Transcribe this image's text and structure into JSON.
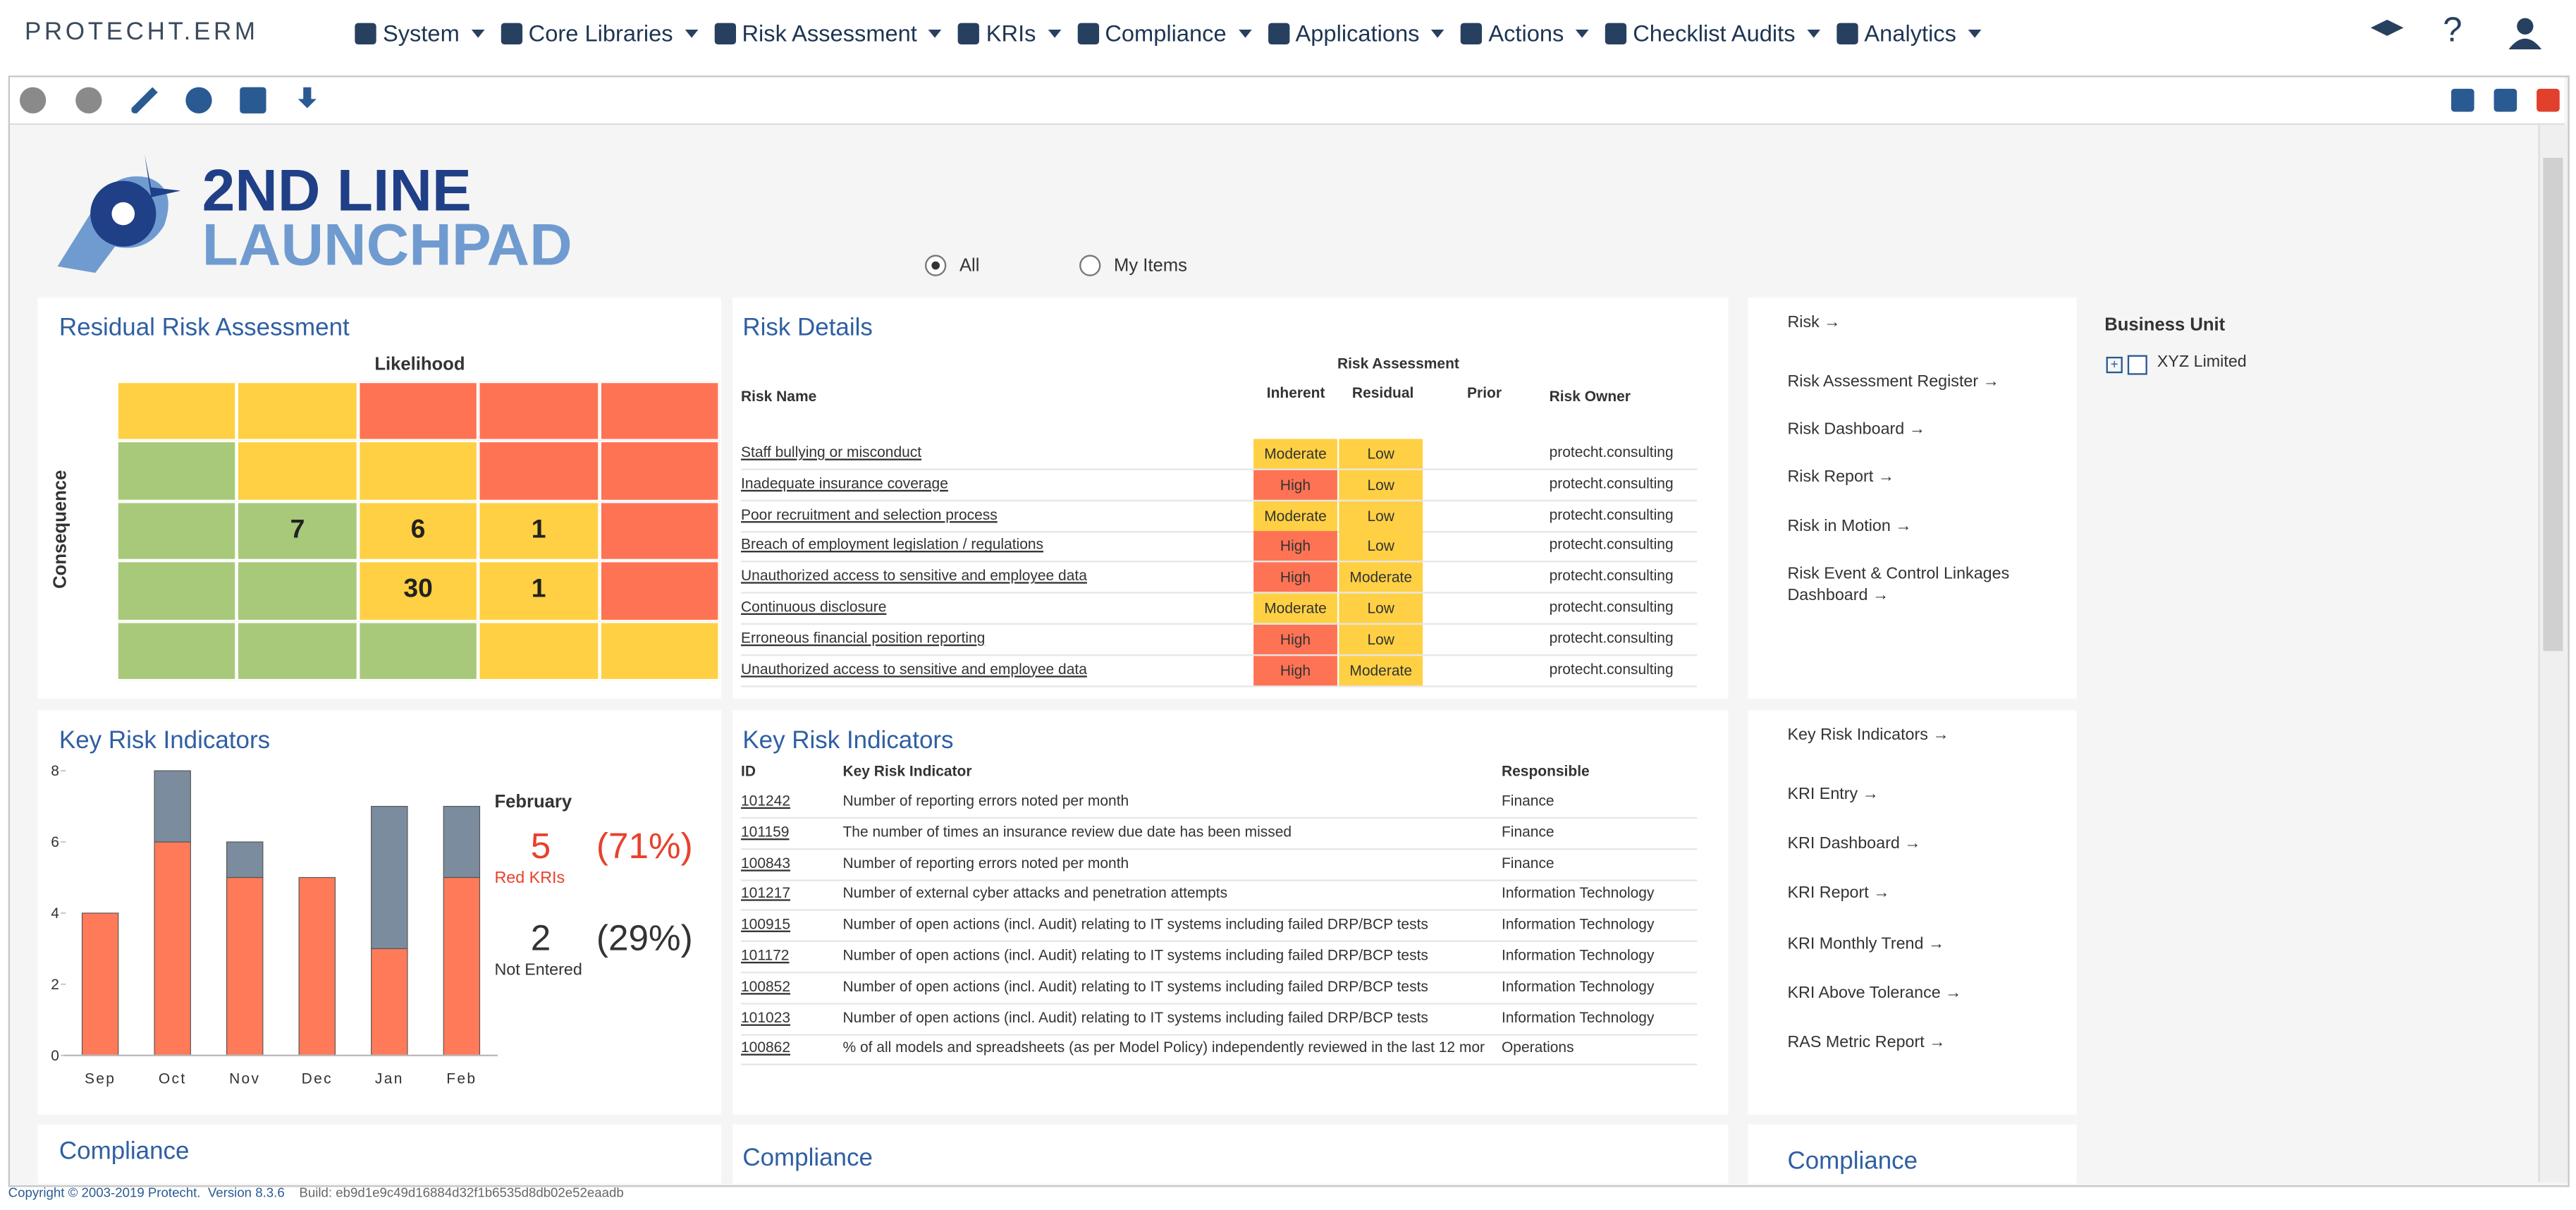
{
  "nav": {
    "brand": "PROTECHT.ERM",
    "menu": [
      "System",
      "Core Libraries",
      "Risk Assessment",
      "KRIs",
      "Compliance",
      "Applications",
      "Actions",
      "Checklist Audits",
      "Analytics"
    ],
    "help": "?"
  },
  "launchpad": {
    "title_line1": "2ND LINE",
    "title_line2": "LAUNCHPAD",
    "filters": [
      "All",
      "My Items"
    ]
  },
  "heatmap": {
    "title": "Residual Risk Assessment",
    "x_label": "Likelihood",
    "y_label": "Consequence",
    "colors": [
      [
        "#ffd043",
        "#ffd043",
        "#ff7355",
        "#ff7355",
        "#ff7355"
      ],
      [
        "#a8c97a",
        "#ffd043",
        "#ffd043",
        "#ff7355",
        "#ff7355"
      ],
      [
        "#a8c97a",
        "#a8c97a",
        "#ffd043",
        "#ffd043",
        "#ff7355"
      ],
      [
        "#a8c97a",
        "#a8c97a",
        "#ffd043",
        "#ffd043",
        "#ff7355"
      ],
      [
        "#a8c97a",
        "#a8c97a",
        "#a8c97a",
        "#ffd043",
        "#ffd043"
      ]
    ],
    "counts": [
      [
        null,
        null,
        null,
        null,
        null
      ],
      [
        null,
        null,
        null,
        null,
        null
      ],
      [
        null,
        7,
        6,
        1,
        null
      ],
      [
        null,
        null,
        30,
        1,
        null
      ],
      [
        null,
        null,
        null,
        null,
        null
      ]
    ]
  },
  "risk_details": {
    "title": "Risk Details",
    "group_header": "Risk Assessment",
    "columns": [
      "Risk Name",
      "Inherent",
      "Residual",
      "Prior",
      "Risk Owner"
    ],
    "rating_colors": {
      "High": "#ff7355",
      "Moderate": "#ffd043",
      "Low": "#ffd043"
    },
    "rows": [
      {
        "name": "Staff bullying or misconduct",
        "inherent": "Moderate",
        "residual": "Low",
        "owner": "protecht.consulting"
      },
      {
        "name": "Inadequate insurance coverage",
        "inherent": "High",
        "residual": "Low",
        "owner": "protecht.consulting"
      },
      {
        "name": "Poor recruitment and selection process",
        "inherent": "Moderate",
        "residual": "Low",
        "owner": "protecht.consulting"
      },
      {
        "name": "Breach of employment legislation / regulations",
        "inherent": "High",
        "residual": "Low",
        "owner": "protecht.consulting"
      },
      {
        "name": "Unauthorized access to sensitive and employee data",
        "inherent": "High",
        "residual": "Moderate",
        "owner": "protecht.consulting"
      },
      {
        "name": "Continuous disclosure",
        "inherent": "Moderate",
        "residual": "Low",
        "owner": "protecht.consulting"
      },
      {
        "name": "Erroneous financial position reporting",
        "inherent": "High",
        "residual": "Low",
        "owner": "protecht.consulting"
      },
      {
        "name": "Unauthorized access to sensitive and employee data",
        "inherent": "High",
        "residual": "Moderate",
        "owner": "protecht.consulting"
      }
    ]
  },
  "risk_links": {
    "title": "Risk",
    "links": [
      "Risk Assessment Register",
      "Risk Dashboard",
      "Risk Report",
      "Risk in Motion",
      "Risk Event & Control Linkages Dashboard"
    ]
  },
  "business_unit": {
    "title": "Business Unit",
    "items": [
      "XYZ Limited"
    ]
  },
  "chart_data": {
    "type": "bar",
    "stacked": true,
    "title": "Key Risk Indicators",
    "categories": [
      "Sep",
      "Oct",
      "Nov",
      "Dec",
      "Jan",
      "Feb"
    ],
    "series": [
      {
        "name": "Red KRIs",
        "color": "#ff7a59",
        "values": [
          4,
          6,
          5,
          5,
          3,
          5
        ]
      },
      {
        "name": "Not Entered",
        "color": "#7a8c9d",
        "values": [
          0,
          2,
          1,
          0,
          4,
          2
        ]
      }
    ],
    "ylim": [
      0,
      8.5
    ],
    "yticks": [
      0,
      2,
      4,
      6,
      8
    ],
    "summary": {
      "month": "February",
      "items": [
        {
          "count": 5,
          "percent": "(71%)",
          "color": "#e8412c"
        },
        {
          "count": 2,
          "percent": "(29%)",
          "color": "#333333"
        }
      ]
    }
  },
  "kri_table": {
    "title": "Key Risk Indicators",
    "columns": [
      "ID",
      "Key Risk Indicator",
      "Responsible"
    ],
    "rows": [
      {
        "id": "101242",
        "indicator": "Number of reporting errors noted per month",
        "responsible": "Finance"
      },
      {
        "id": "101159",
        "indicator": "The number of times an insurance review due date has been missed",
        "responsible": "Finance"
      },
      {
        "id": "100843",
        "indicator": "Number of reporting errors noted per month",
        "responsible": "Finance"
      },
      {
        "id": "101217",
        "indicator": "Number of external cyber attacks and penetration attempts",
        "responsible": "Information Technology"
      },
      {
        "id": "100915",
        "indicator": "Number of open actions (incl. Audit) relating to IT systems including failed DRP/BCP tests",
        "responsible": "Information Technology"
      },
      {
        "id": "101172",
        "indicator": "Number of open actions (incl. Audit) relating to IT systems including failed DRP/BCP tests",
        "responsible": "Information Technology"
      },
      {
        "id": "100852",
        "indicator": "Number of open actions (incl. Audit) relating to IT systems including failed DRP/BCP tests",
        "responsible": "Information Technology"
      },
      {
        "id": "101023",
        "indicator": "Number of open actions (incl. Audit) relating to IT systems including failed DRP/BCP tests",
        "responsible": "Information Technology"
      },
      {
        "id": "100862",
        "indicator": "% of all models and spreadsheets (as per Model Policy) independently reviewed in the last 12 mor",
        "responsible": "Operations"
      }
    ]
  },
  "kri_links": {
    "title": "Key Risk Indicators",
    "links": [
      "KRI Entry",
      "KRI Dashboard",
      "KRI Report",
      "KRI Monthly Trend",
      "KRI Above Tolerance",
      "RAS Metric Report"
    ]
  },
  "compliance_titles": [
    "Compliance",
    "Compliance",
    "Compliance"
  ],
  "footer": {
    "copyright": "Copyright © 2003-2019 Protecht.",
    "version": "Version 8.3.6",
    "build": "Build: eb9d1e9c49d16884d32f1b6535d8db02e52eaadb"
  }
}
